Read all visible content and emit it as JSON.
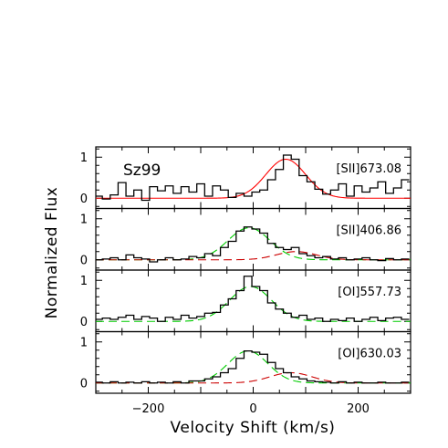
{
  "chart_data": {
    "type": "line",
    "object": "Sz99",
    "xlabel": "Velocity Shift (km/s)",
    "ylabel": "Normalized Flux",
    "xlim": [
      -300,
      300
    ],
    "xticks": [
      -200,
      0,
      200
    ],
    "grid": false,
    "colors": {
      "data": "#000000",
      "total_fit": "#ff0000",
      "gauss_low": "#00cc00",
      "gauss_high": "#cc0000"
    },
    "panels": [
      {
        "label": "[SII]673.08",
        "ylim": [
          -0.25,
          1.25
        ],
        "yticks": [
          0,
          1
        ],
        "gaussians": [
          {
            "center": 62,
            "amplitude": 0.95,
            "sigma": 38,
            "color": "#ff0000",
            "dash": "solid"
          }
        ],
        "x": [
          -295,
          -280,
          -265,
          -250,
          -235,
          -220,
          -205,
          -190,
          -175,
          -160,
          -145,
          -130,
          -115,
          -100,
          -85,
          -70,
          -55,
          -40,
          -25,
          -10,
          5,
          20,
          35,
          50,
          65,
          80,
          95,
          110,
          125,
          140,
          155,
          170,
          185,
          200,
          215,
          230,
          245,
          260,
          275,
          290
        ],
        "y": [
          0.05,
          -0.02,
          0.08,
          0.38,
          0.05,
          0.2,
          -0.05,
          0.28,
          0.18,
          0.3,
          0.12,
          0.28,
          0.15,
          0.35,
          0.05,
          0.3,
          0.2,
          0.02,
          0.12,
          0.05,
          0.15,
          0.2,
          0.45,
          0.7,
          1.05,
          0.95,
          0.55,
          0.4,
          0.22,
          0.1,
          0.2,
          0.35,
          0.05,
          0.3,
          0.15,
          0.25,
          0.4,
          0.12,
          0.25,
          0.45
        ]
      },
      {
        "label": "[SII]406.86",
        "ylim": [
          -0.25,
          1.25
        ],
        "yticks": [
          0,
          1
        ],
        "gaussians": [
          {
            "center": -8,
            "amplitude": 0.78,
            "sigma": 40,
            "color": "#00cc00",
            "dash": "dashed"
          },
          {
            "center": 82,
            "amplitude": 0.2,
            "sigma": 38,
            "color": "#cc0000",
            "dash": "dashed"
          }
        ],
        "x": [
          -295,
          -280,
          -265,
          -250,
          -235,
          -220,
          -205,
          -190,
          -175,
          -160,
          -145,
          -130,
          -115,
          -100,
          -85,
          -70,
          -55,
          -40,
          -25,
          -10,
          5,
          20,
          35,
          50,
          65,
          80,
          95,
          110,
          125,
          140,
          155,
          170,
          185,
          200,
          215,
          230,
          245,
          260,
          275,
          290
        ],
        "y": [
          0.0,
          0.02,
          0.05,
          0.0,
          0.12,
          0.05,
          0.02,
          -0.05,
          0.0,
          0.05,
          0.0,
          0.02,
          0.08,
          0.05,
          0.15,
          0.1,
          0.3,
          0.45,
          0.7,
          0.8,
          0.75,
          0.65,
          0.4,
          0.3,
          0.25,
          0.3,
          0.15,
          0.1,
          0.05,
          0.08,
          0.02,
          0.05,
          0.0,
          0.02,
          0.05,
          0.0,
          -0.02,
          0.03,
          0.0,
          0.02
        ]
      },
      {
        "label": "[OI]557.73",
        "ylim": [
          -0.25,
          1.25
        ],
        "yticks": [
          0,
          1
        ],
        "gaussians": [
          {
            "center": -5,
            "amplitude": 0.85,
            "sigma": 40,
            "color": "#00cc00",
            "dash": "dashed"
          }
        ],
        "x": [
          -295,
          -280,
          -265,
          -250,
          -235,
          -220,
          -205,
          -190,
          -175,
          -160,
          -145,
          -130,
          -115,
          -100,
          -85,
          -70,
          -55,
          -40,
          -25,
          -10,
          5,
          20,
          35,
          50,
          65,
          80,
          95,
          110,
          125,
          140,
          155,
          170,
          185,
          200,
          215,
          230,
          245,
          260,
          275,
          290
        ],
        "y": [
          0.05,
          0.08,
          0.05,
          0.1,
          0.15,
          0.05,
          0.12,
          0.08,
          0.0,
          0.1,
          0.05,
          0.15,
          0.08,
          0.12,
          0.2,
          0.22,
          0.4,
          0.55,
          0.75,
          1.1,
          0.85,
          0.75,
          0.45,
          0.3,
          0.2,
          0.1,
          0.15,
          0.05,
          0.08,
          0.0,
          0.05,
          0.02,
          0.08,
          0.0,
          0.05,
          0.1,
          0.02,
          0.08,
          0.1,
          0.05
        ]
      },
      {
        "label": "[OI]630.03",
        "ylim": [
          -0.25,
          1.25
        ],
        "yticks": [
          0,
          1
        ],
        "gaussians": [
          {
            "center": -10,
            "amplitude": 0.78,
            "sigma": 38,
            "color": "#00cc00",
            "dash": "dashed"
          },
          {
            "center": 72,
            "amplitude": 0.25,
            "sigma": 40,
            "color": "#cc0000",
            "dash": "dashed"
          }
        ],
        "x": [
          -295,
          -280,
          -265,
          -250,
          -235,
          -220,
          -205,
          -190,
          -175,
          -160,
          -145,
          -130,
          -115,
          -100,
          -85,
          -70,
          -55,
          -40,
          -25,
          -10,
          5,
          20,
          35,
          50,
          65,
          80,
          95,
          110,
          125,
          140,
          155,
          170,
          185,
          200,
          215,
          230,
          245,
          260,
          275,
          290
        ],
        "y": [
          0.02,
          0.0,
          0.03,
          0.0,
          0.02,
          0.0,
          0.03,
          0.0,
          0.02,
          0.0,
          0.03,
          0.0,
          0.05,
          0.05,
          0.1,
          0.15,
          0.25,
          0.35,
          0.6,
          0.78,
          0.75,
          0.7,
          0.5,
          0.35,
          0.25,
          0.15,
          0.1,
          0.05,
          0.03,
          0.02,
          0.0,
          0.03,
          0.0,
          0.02,
          0.0,
          0.0,
          0.02,
          0.0,
          0.0,
          0.02
        ]
      }
    ]
  }
}
